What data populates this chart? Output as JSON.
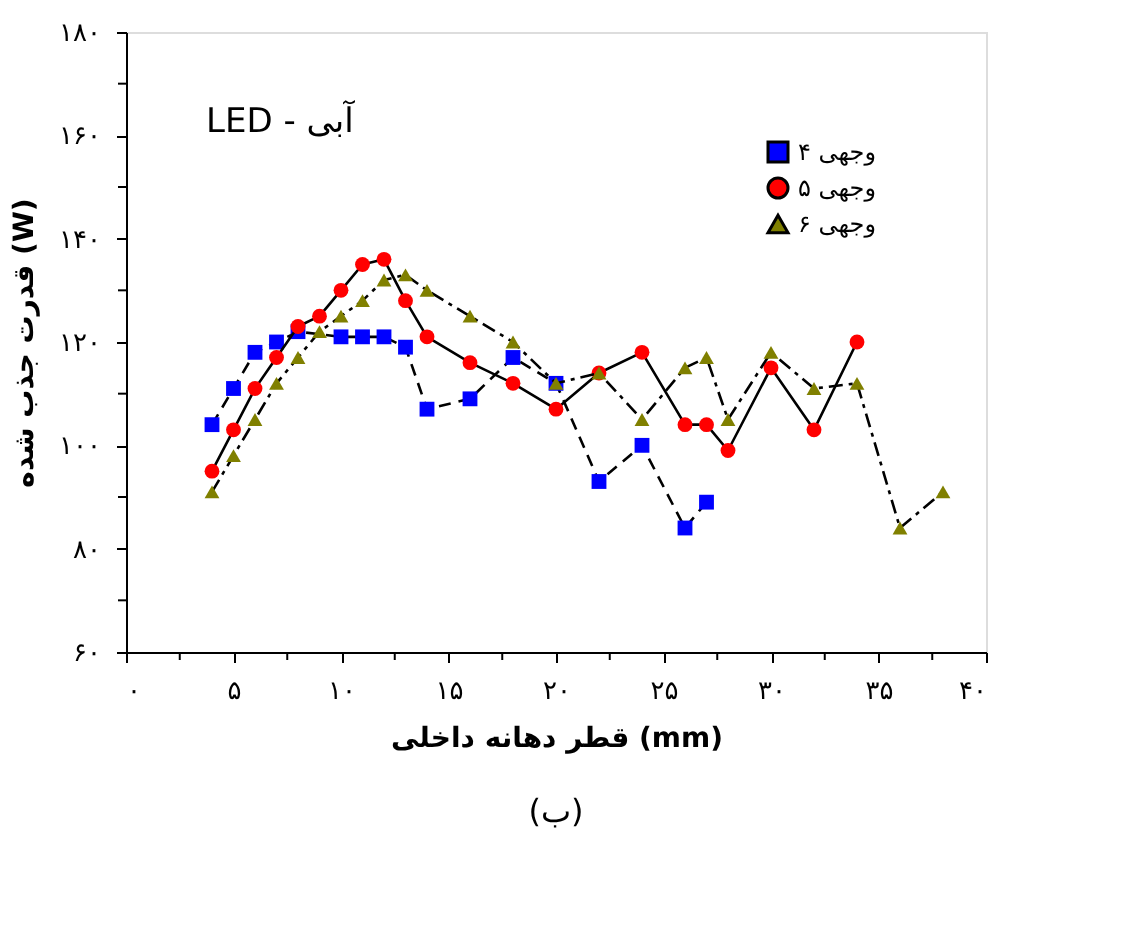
{
  "chart_data": {
    "type": "line",
    "xlabel": "قطر دهانه داخلی (mm)",
    "ylabel": "قدرت جذب شده (W)",
    "annotations": [
      "LED - آبی",
      "(ب)"
    ],
    "xlim": [
      0,
      40
    ],
    "ylim": [
      60,
      180
    ],
    "xticks": [
      {
        "value": 0,
        "label": "۰"
      },
      {
        "value": 2.5,
        "label": null
      },
      {
        "value": 5,
        "label": "۵"
      },
      {
        "value": 7.5,
        "label": null
      },
      {
        "value": 10,
        "label": "۱۰"
      },
      {
        "value": 12.5,
        "label": null
      },
      {
        "value": 15,
        "label": "۱۵"
      },
      {
        "value": 17.5,
        "label": null
      },
      {
        "value": 20,
        "label": "۲۰"
      },
      {
        "value": 22.5,
        "label": null
      },
      {
        "value": 25,
        "label": "۲۵"
      },
      {
        "value": 27.5,
        "label": null
      },
      {
        "value": 30,
        "label": "۳۰"
      },
      {
        "value": 32.5,
        "label": null
      },
      {
        "value": 35,
        "label": "۳۵"
      },
      {
        "value": 37.5,
        "label": null
      },
      {
        "value": 40,
        "label": "۴۰"
      }
    ],
    "yticks": [
      {
        "value": 60,
        "label": "۶۰"
      },
      {
        "value": 70,
        "label": null
      },
      {
        "value": 80,
        "label": "۸۰"
      },
      {
        "value": 90,
        "label": null
      },
      {
        "value": 100,
        "label": "۱۰۰"
      },
      {
        "value": 110,
        "label": null
      },
      {
        "value": 120,
        "label": "۱۲۰"
      },
      {
        "value": 130,
        "label": null
      },
      {
        "value": 140,
        "label": "۱۴۰"
      },
      {
        "value": 150,
        "label": null
      },
      {
        "value": 160,
        "label": "۱۶۰"
      },
      {
        "value": 170,
        "label": null
      },
      {
        "value": 180,
        "label": "۱۸۰"
      }
    ],
    "grid": false,
    "legend": "top right",
    "series": [
      {
        "name": "۴ وجهی",
        "color": "#0000ff",
        "marker": "square",
        "line_style": "dashed",
        "x": [
          4,
          5,
          6,
          7,
          8,
          10,
          11,
          12,
          13,
          14,
          16,
          18,
          20,
          22,
          24,
          26,
          27
        ],
        "values": [
          104,
          111,
          118,
          120,
          122,
          121,
          121,
          121,
          119,
          107,
          109,
          117,
          112,
          93,
          100,
          84,
          89
        ]
      },
      {
        "name": "۵ وجهی",
        "color": "#ff0000",
        "marker": "circle",
        "line_style": "solid",
        "x": [
          4,
          5,
          6,
          7,
          8,
          9,
          10,
          11,
          12,
          13,
          14,
          16,
          18,
          20,
          22,
          24,
          26,
          27,
          28,
          30,
          32,
          34
        ],
        "values": [
          95,
          103,
          111,
          117,
          123,
          125,
          130,
          135,
          136,
          128,
          121,
          116,
          112,
          107,
          114,
          118,
          104,
          104,
          99,
          115,
          103,
          120
        ]
      },
      {
        "name": "۶ وجهی",
        "color": "#808000",
        "marker": "triangle",
        "line_style": "dotted",
        "x": [
          4,
          5,
          6,
          7,
          8,
          9,
          10,
          11,
          12,
          13,
          14,
          16,
          18,
          20,
          22,
          24,
          26,
          27,
          28,
          30,
          32,
          34,
          36,
          38
        ],
        "values": [
          91,
          98,
          105,
          112,
          117,
          122,
          125,
          128,
          132,
          133,
          130,
          125,
          120,
          112,
          114,
          105,
          115,
          117,
          105,
          118,
          111,
          112,
          84,
          91
        ]
      }
    ]
  }
}
